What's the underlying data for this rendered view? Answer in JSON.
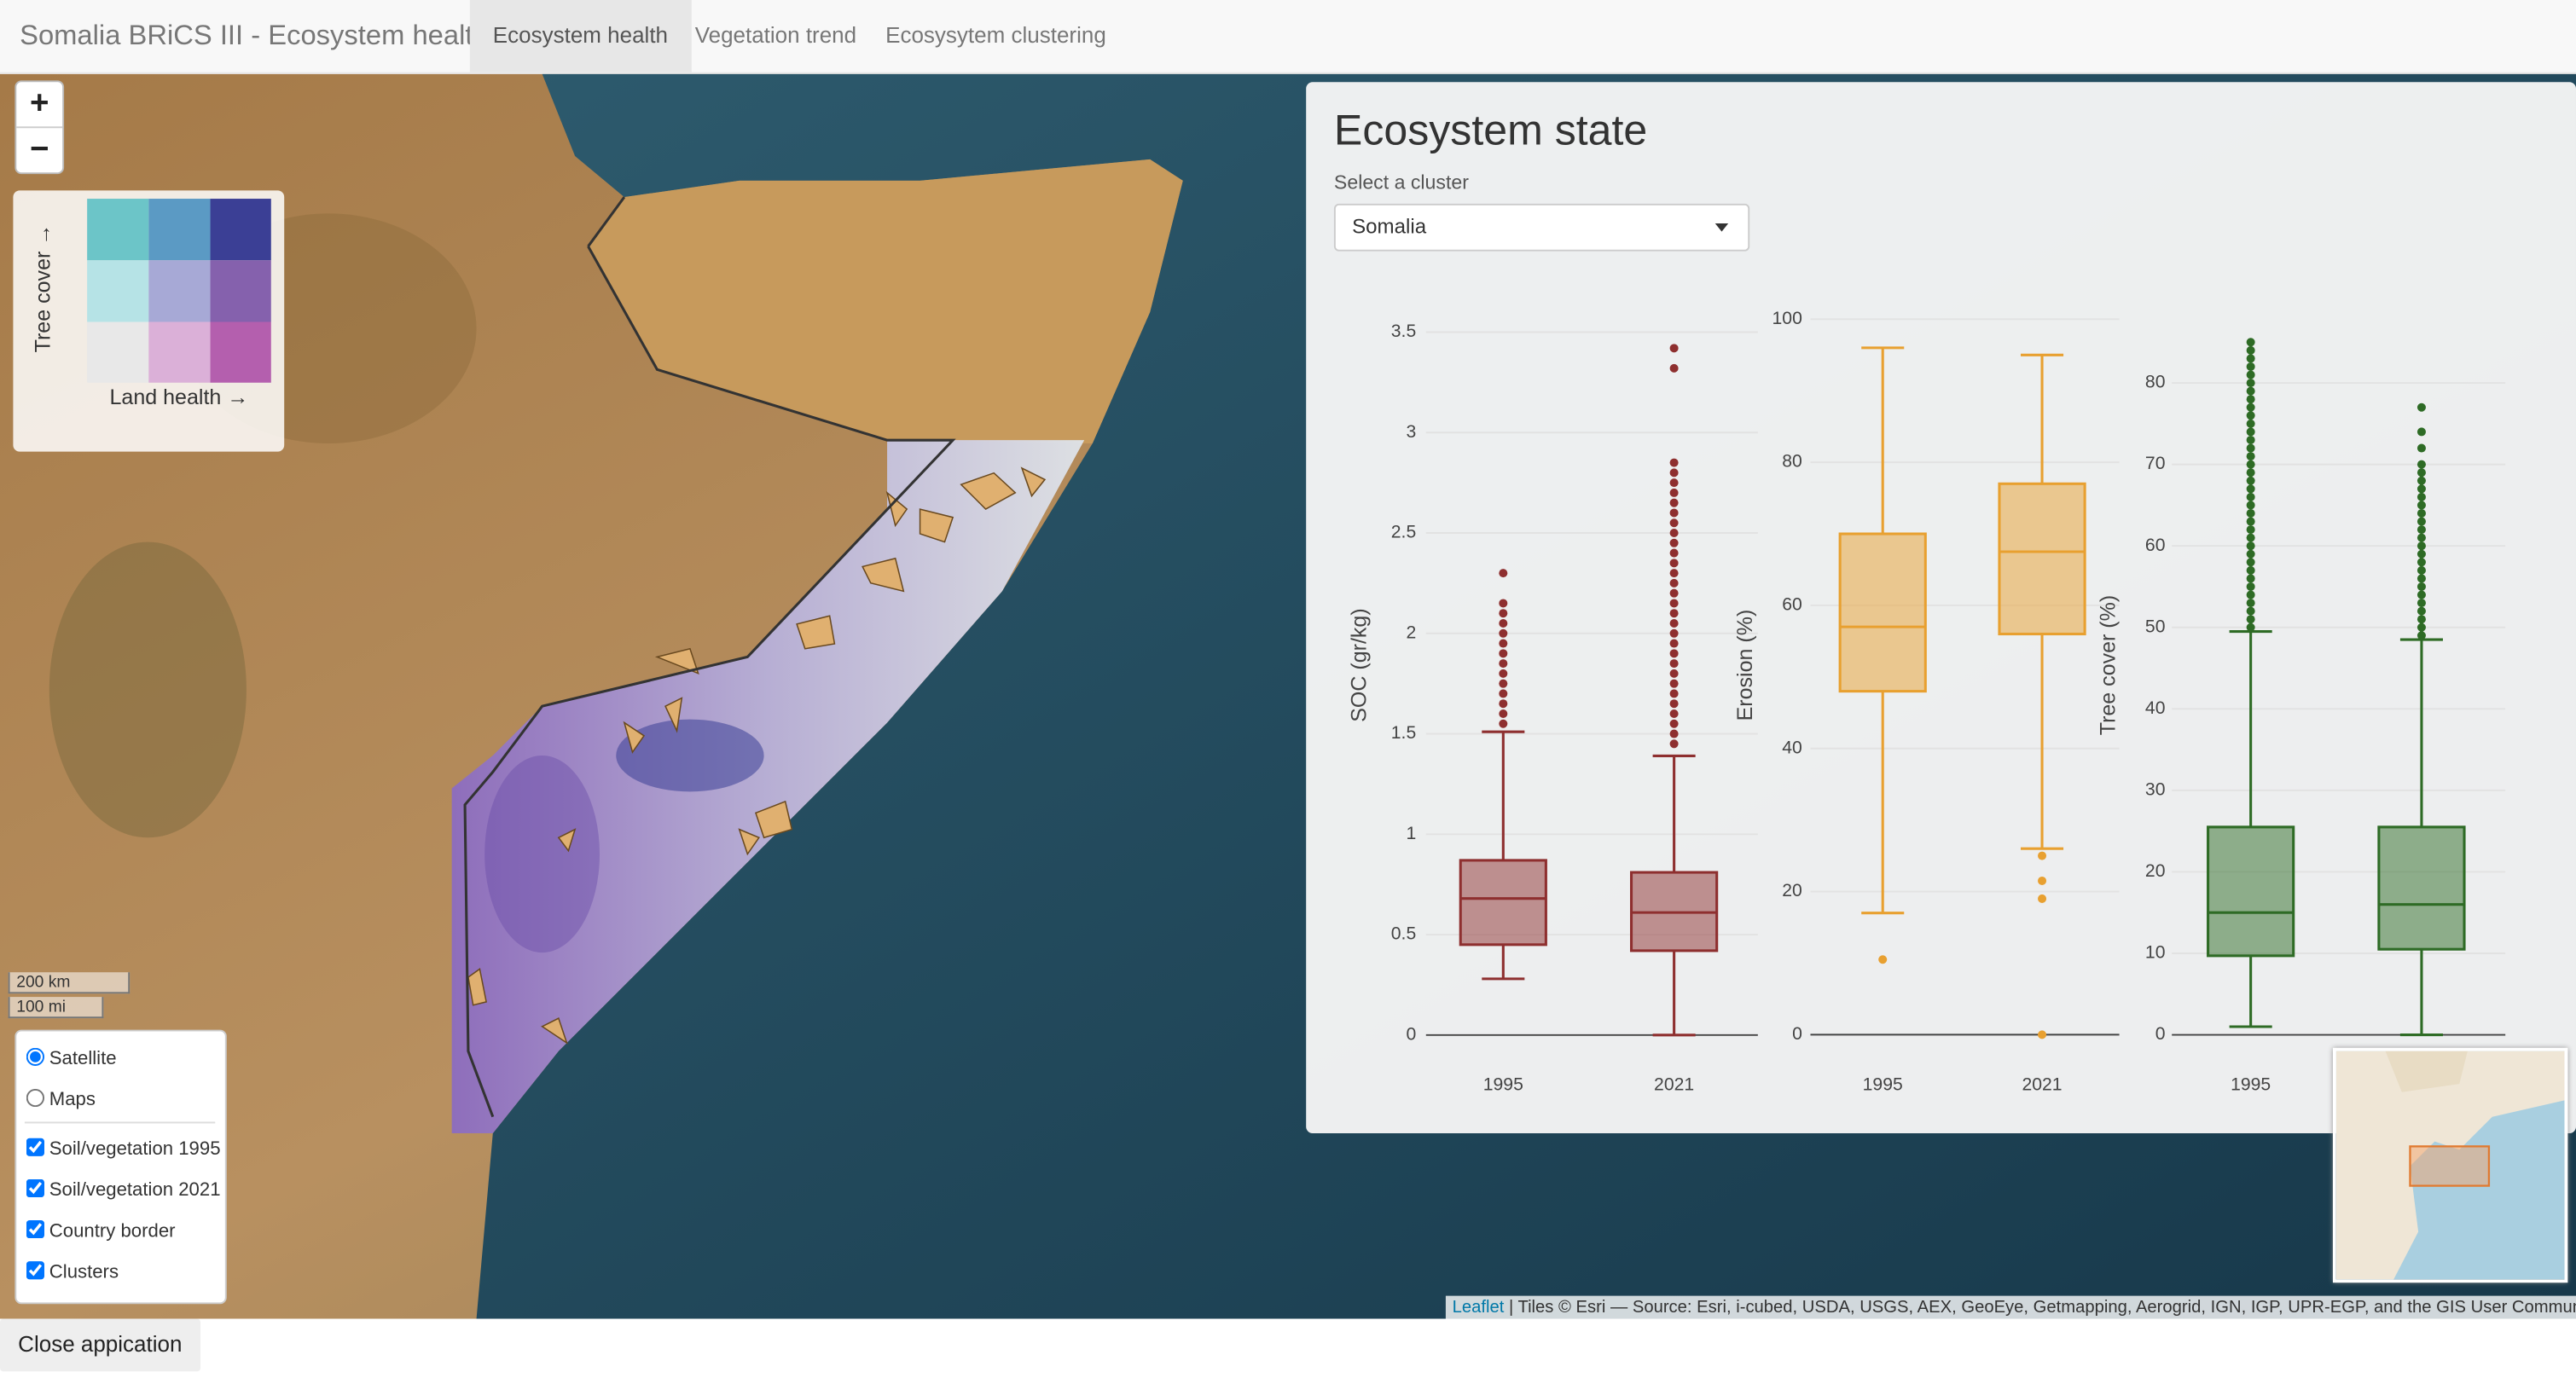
{
  "navbar": {
    "brand": "Somalia BRiCS III - Ecosystem health",
    "tabs": [
      "Ecosystem health",
      "Vegetation trend",
      "Ecosysytem clustering"
    ],
    "active": 0
  },
  "zoom": [
    "+",
    "−"
  ],
  "legend": {
    "y_label": "Tree cover →",
    "x_label": "Land health →",
    "colors": [
      [
        "#6cc5c8",
        "#5b9ac4",
        "#3b3f95"
      ],
      [
        "#b6e3e6",
        "#a7a9d6",
        "#8561ad"
      ],
      [
        "#e8e8e8",
        "#dbb0d8",
        "#b45fae"
      ]
    ]
  },
  "scale": [
    "200 km",
    "100 mi"
  ],
  "layers": {
    "base": [
      "Satellite",
      "Maps"
    ],
    "selected_base": 0,
    "overlays": [
      "Soil/vegetation 1995",
      "Soil/vegetation 2021",
      "Country border",
      "Clusters"
    ]
  },
  "panel": {
    "title": "Ecosystem state",
    "select_label": "Select a cluster",
    "select_value": "Somalia"
  },
  "chart_data": [
    {
      "type": "box",
      "ylabel": "SOC (gr/kg)",
      "categories": [
        "1995",
        "2021"
      ],
      "color": "#8e2f2f",
      "ylim": [
        -0.08,
        3.6
      ],
      "yticks": [
        0,
        0.5,
        1,
        1.5,
        2,
        2.5,
        3,
        3.5
      ],
      "boxes": [
        {
          "min": 0.28,
          "q1": 0.45,
          "median": 0.68,
          "q3": 0.87,
          "max": 1.51,
          "outliers": [
            1.55,
            1.6,
            1.65,
            1.7,
            1.75,
            1.8,
            1.85,
            1.9,
            1.95,
            2.0,
            2.05,
            2.1,
            2.15,
            2.3
          ]
        },
        {
          "min": 0,
          "q1": 0.42,
          "median": 0.61,
          "q3": 0.81,
          "max": 1.39,
          "outliers": [
            1.45,
            1.5,
            1.55,
            1.6,
            1.65,
            1.7,
            1.75,
            1.8,
            1.85,
            1.9,
            1.95,
            2.0,
            2.05,
            2.1,
            2.15,
            2.2,
            2.25,
            2.3,
            2.35,
            2.4,
            2.45,
            2.5,
            2.55,
            2.6,
            2.65,
            2.7,
            2.75,
            2.8,
            2.85,
            3.32,
            3.42
          ]
        }
      ]
    },
    {
      "type": "box",
      "ylabel": "Erosion (%)",
      "categories": [
        "1995",
        "2021"
      ],
      "color": "#e8a030",
      "ylim": [
        -2.3,
        101
      ],
      "yticks": [
        0,
        20,
        40,
        60,
        80,
        100
      ],
      "boxes": [
        {
          "min": 17,
          "q1": 48,
          "median": 57,
          "q3": 70,
          "max": 96,
          "outliers": [
            10.5
          ]
        },
        {
          "min": 26,
          "q1": 56,
          "median": 67.5,
          "q3": 77,
          "max": 95,
          "outliers": [
            25,
            21.5,
            19,
            0
          ]
        }
      ]
    },
    {
      "type": "box",
      "ylabel": "Tree cover (%)",
      "categories": [
        "1995",
        null
      ],
      "color": "#2e6b25",
      "ylim": [
        -2,
        88.7
      ],
      "yticks": [
        0,
        10,
        20,
        30,
        40,
        50,
        60,
        70,
        80
      ],
      "boxes": [
        {
          "min": 1,
          "q1": 9.7,
          "median": 15,
          "q3": 25.5,
          "max": 49.5,
          "outliers": [
            50,
            51,
            52,
            53,
            54,
            55,
            56,
            57,
            58,
            59,
            60,
            61,
            62,
            63,
            64,
            65,
            66,
            67,
            68,
            69,
            70,
            71,
            72,
            73,
            74,
            75,
            76,
            77,
            78,
            79,
            80,
            81,
            82,
            83,
            84,
            85
          ]
        },
        {
          "min": 0,
          "q1": 10.5,
          "median": 16,
          "q3": 25.5,
          "max": 48.5,
          "outliers": [
            49,
            50,
            51,
            52,
            53,
            54,
            55,
            56,
            57,
            58,
            59,
            60,
            61,
            62,
            63,
            64,
            65,
            66,
            67,
            68,
            69,
            70,
            72,
            74,
            77
          ]
        }
      ]
    }
  ],
  "attribution": {
    "link": "Leaflet",
    "text": "| Tiles © Esri — Source: Esri, i-cubed, USDA, USGS, AEX, GeoEye, Getmapping, Aerogrid, IGN, IGP, UPR-EGP, and the GIS User Community"
  },
  "close_button": "Close appication"
}
